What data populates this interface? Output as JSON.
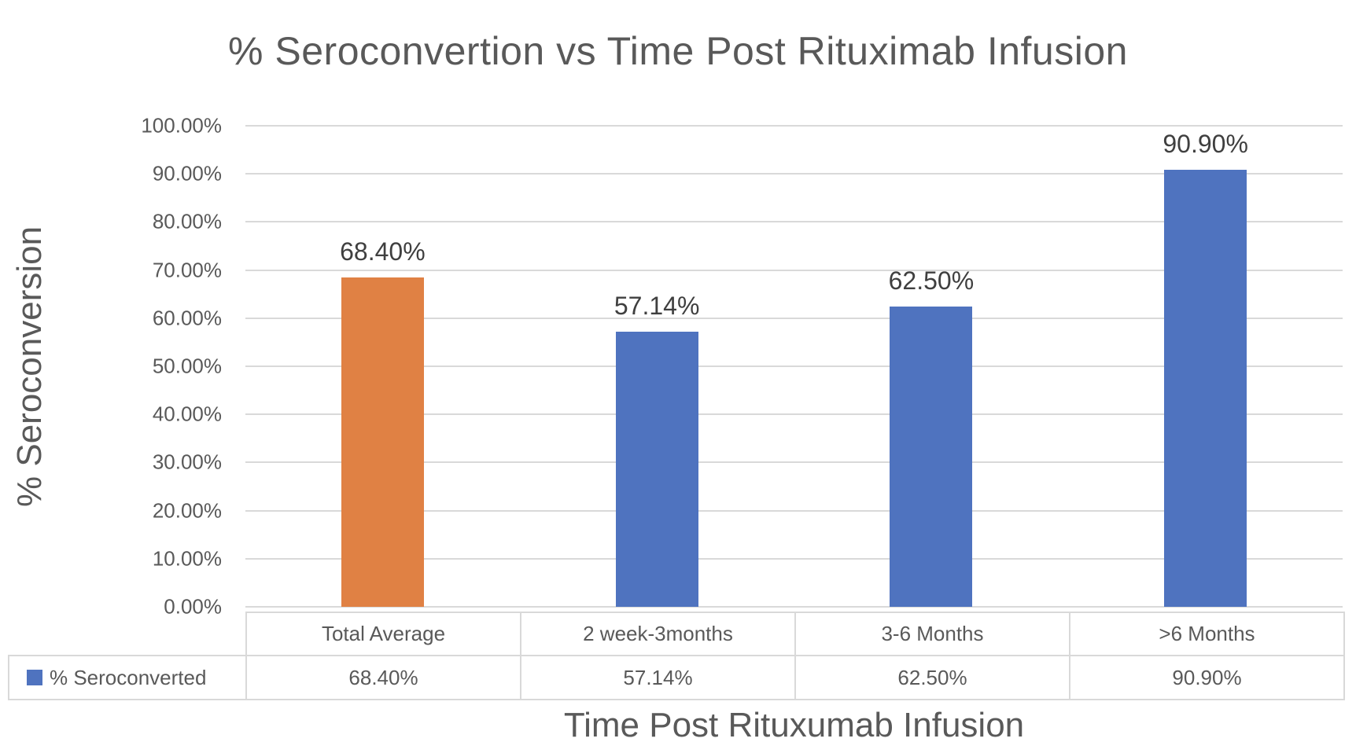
{
  "chart_data": {
    "type": "bar",
    "title": "% Seroconvertion vs Time Post Rituximab Infusion",
    "xlabel": "Time Post Rituxumab Infusion",
    "ylabel": "% Seroconversion",
    "categories": [
      "Total Average",
      "2 week-3months",
      "3-6 Months",
      ">6 Months"
    ],
    "series": [
      {
        "name": "% Seroconverted",
        "values": [
          68.4,
          57.14,
          62.5,
          90.9
        ]
      }
    ],
    "value_labels": [
      "68.40%",
      "57.14%",
      "62.50%",
      "90.90%"
    ],
    "bar_colors": [
      "#E08144",
      "#4F73BF",
      "#4F73BF",
      "#4F73BF"
    ],
    "legend_marker_color": "#4F73BF",
    "ylim": [
      0,
      100
    ],
    "yticks": [
      {
        "value": 0,
        "label": "0.00%"
      },
      {
        "value": 10,
        "label": "10.00%"
      },
      {
        "value": 20,
        "label": "20.00%"
      },
      {
        "value": 30,
        "label": "30.00%"
      },
      {
        "value": 40,
        "label": "40.00%"
      },
      {
        "value": 50,
        "label": "50.00%"
      },
      {
        "value": 60,
        "label": "60.00%"
      },
      {
        "value": 70,
        "label": "70.00%"
      },
      {
        "value": 80,
        "label": "80.00%"
      },
      {
        "value": 90,
        "label": "90.00%"
      },
      {
        "value": 100,
        "label": "100.00%"
      }
    ],
    "grid": true,
    "gridline_color": "#D9D9D9",
    "table_border_color": "#D9D9D9",
    "title_color": "#595959",
    "axis_text_color": "#595959",
    "data_label_color": "#3F3F3F",
    "legend_position": "table-left",
    "data_table": true
  }
}
